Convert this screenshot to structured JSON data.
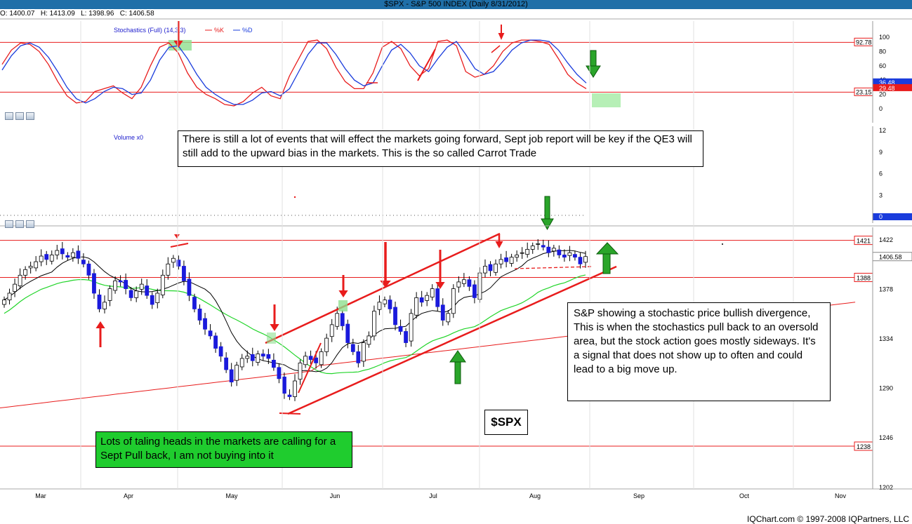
{
  "title": "$SPX - S&P 500 INDEX (Daily 8/31/2012)",
  "ohlc": {
    "open": "O: 1400.07",
    "high": "H: 1413.09",
    "low": "L: 1398.96",
    "close": "C: 1406.58"
  },
  "copyright": "IQChart.com © 1997-2008 IQPartners, LLC",
  "ticker_label": "$SPX",
  "annotations": {
    "top": "There is still a lot of events that will effect the markets going forward, Sept job report will be key if the QE3 will still add to the upward bias in the markets. This is the so called Carrot Trade",
    "right": "S&P showing a stochastic price bullish divergence, This is when the stochastics pull back to an oversold area, but the stock action goes mostly sideways. It's a signal that does not show up to often and could lead to a big move up.",
    "bottom": "Lots of taling heads in the markets are calling for a Sept Pull back, I am not buying into it"
  },
  "colors": {
    "up": "#ffffff",
    "down": "#1a1adc",
    "sma20": "#000000",
    "sma50": "#22d52a",
    "sma200": "#e81c1c",
    "annotation_red": "#e81c1c",
    "annotation_green": "#2aa52a"
  },
  "chart_data": [
    {
      "type": "line",
      "panel": "stochastics",
      "title": "Stochastics (Full) (14,3,3)",
      "legend": [
        "%K",
        "%D"
      ],
      "y_ticks": [
        0,
        20,
        40,
        60,
        80,
        100
      ],
      "ylim": [
        0,
        100
      ],
      "reference_levels": [
        {
          "value": 92.78,
          "label": "92.78"
        },
        {
          "value": 23.15,
          "label": "23.15"
        }
      ],
      "last_values": {
        "percent_d": "36.48",
        "percent_k": "29.48"
      },
      "series": [
        {
          "name": "%K",
          "color": "#e81c1c",
          "values": [
            62,
            82,
            92,
            90,
            80,
            62,
            38,
            18,
            8,
            10,
            24,
            28,
            32,
            22,
            14,
            30,
            60,
            86,
            92,
            78,
            50,
            30,
            20,
            14,
            6,
            4,
            10,
            22,
            30,
            18,
            14,
            46,
            70,
            94,
            96,
            84,
            58,
            38,
            28,
            28,
            50,
            86,
            94,
            84,
            60,
            46,
            56,
            94,
            96,
            88,
            52,
            44,
            48,
            60,
            80,
            92,
            96,
            96,
            94,
            90,
            70,
            48,
            36,
            28
          ]
        },
        {
          "name": "%D",
          "color": "#1a3cdc",
          "values": [
            54,
            74,
            88,
            92,
            86,
            72,
            52,
            30,
            14,
            8,
            14,
            24,
            30,
            28,
            20,
            22,
            40,
            68,
            86,
            88,
            70,
            48,
            30,
            20,
            12,
            6,
            6,
            12,
            22,
            24,
            18,
            28,
            52,
            76,
            92,
            92,
            76,
            56,
            40,
            32,
            36,
            60,
            82,
            90,
            78,
            60,
            52,
            70,
            86,
            94,
            76,
            56,
            48,
            52,
            66,
            82,
            92,
            96,
            96,
            94,
            82,
            64,
            48,
            36
          ]
        }
      ]
    },
    {
      "type": "bar",
      "panel": "volume",
      "title": "Volume x0",
      "y_ticks": [
        0,
        3,
        6,
        9,
        12
      ],
      "last_value": "0"
    },
    {
      "type": "candlestick",
      "panel": "price",
      "x_ticks": [
        "Mar",
        "Apr",
        "May",
        "Jun",
        "Jul",
        "Aug",
        "Sep",
        "Oct",
        "Nov"
      ],
      "y_ticks": [
        1202,
        1246,
        1290,
        1334,
        1378,
        1422
      ],
      "ylim": [
        1202,
        1430
      ],
      "reference_levels": [
        {
          "value": 1421,
          "label": "1421"
        },
        {
          "value": 1388,
          "label": "1388"
        },
        {
          "value": 1238,
          "label": "1238"
        }
      ],
      "last_price_label": "1406.58",
      "close": [
        1368,
        1374,
        1382,
        1390,
        1395,
        1398,
        1402,
        1407,
        1404,
        1408,
        1412,
        1409,
        1406,
        1410,
        1405,
        1400,
        1390,
        1374,
        1360,
        1366,
        1378,
        1385,
        1384,
        1378,
        1370,
        1376,
        1382,
        1372,
        1364,
        1374,
        1390,
        1400,
        1405,
        1398,
        1385,
        1372,
        1360,
        1350,
        1342,
        1336,
        1325,
        1318,
        1306,
        1295,
        1310,
        1316,
        1318,
        1314,
        1320,
        1318,
        1316,
        1308,
        1298,
        1285,
        1282,
        1296,
        1312,
        1318,
        1315,
        1312,
        1322,
        1334,
        1346,
        1356,
        1345,
        1330,
        1322,
        1312,
        1330,
        1336,
        1358,
        1366,
        1368,
        1360,
        1346,
        1340,
        1330,
        1356,
        1370,
        1366,
        1372,
        1378,
        1362,
        1350,
        1356,
        1378,
        1384,
        1386,
        1380,
        1370,
        1392,
        1398,
        1394,
        1400,
        1404,
        1402,
        1406,
        1408,
        1410,
        1413,
        1416,
        1418,
        1415,
        1410,
        1414,
        1408,
        1406,
        1410,
        1406,
        1400,
        1406.58
      ]
    }
  ]
}
